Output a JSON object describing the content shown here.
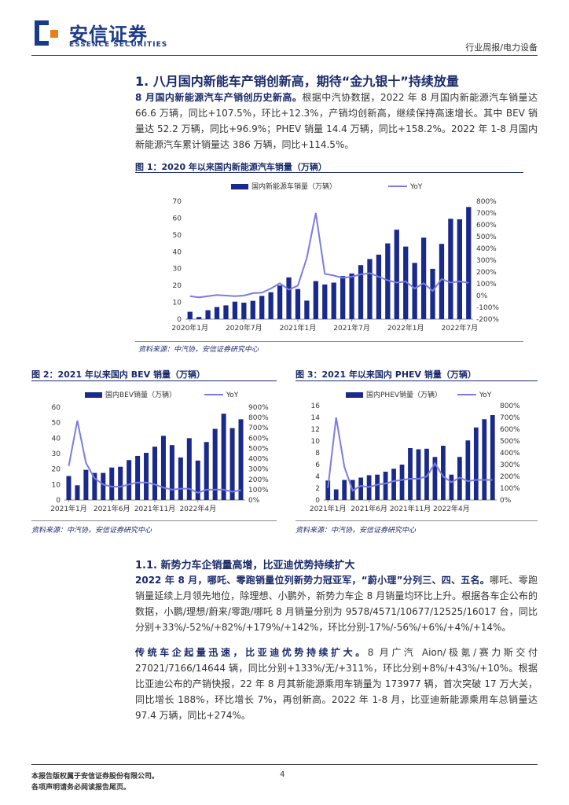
{
  "header": {
    "logo_cn": "安信证券",
    "logo_en": "ESSENCE SECURITIES",
    "report_type": "行业周报/电力设备"
  },
  "section1": {
    "title": "1. 八月国内新能车产销创新高，期待“金九银十”持续放量",
    "para_bold": "8 月国内新能源汽车产销创历史新高。",
    "para_text": "根据中汽协数据，2022 年 8 月国内新能源汽车销量达 66.6 万辆，同比+107.5%，环比+12.3%，产销均创新高，继续保持高速增长。其中 BEV 销量达 52.2 万辆，同比+96.9%；PHEV 销量 14.4 万辆，同比+158.2%。2022 年 1-8 月国内新能源汽车累计销量达 386 万辆，同比+114.5%。"
  },
  "fig1": {
    "title": "图 1：2020 年以来国内新能源汽车销量（万辆）",
    "source": "资料来源：中汽协，安信证券研究中心"
  },
  "fig2": {
    "title": "图 2：2021 年以来国内 BEV 销量（万辆）",
    "source": "资料来源：中汽协，安信证券研究中心"
  },
  "fig3": {
    "title": "图 3：2021 年以来国内 PHEV 销量（万辆）",
    "source": "资料来源：中汽协，安信证券研究中心"
  },
  "section11": {
    "title": "1.1. 新势力车企销量高增，比亚迪优势持续扩大",
    "p1_bold": "2022 年 8 月，哪吒、零跑销量位列新势力冠亚军，“蔚小理”分列三、四、五名。",
    "p1_text": "哪吒、零跑销量延续上月领先地位，除理想、小鹏外，新势力车企 8 月销量均环比上升。根据各车企公布的数据，小鹏/理想/蔚来/零跑/哪吒 8 月销量分别为 9578/4571/10677/12525/16017 台，同比分别+33%/-52%/+82%/+179%/+142%，环比分别-17%/-56%/+6%/+4%/+14%。",
    "p2_bold": "传统车企起量迅速，比亚迪优势持续扩大。",
    "p2_text": "8 月广汽 Aion/极氪/赛力斯交付 27021/7166/14644 辆，同比分别+133%/无/+311%，环比分别+8%/+43%/+10%。根据比亚迪公布的产销快报，22 年 8 月其新能源乘用车销量为 173977 辆，首次突破 17 万大关，同比增长 188%，环比增长 7%，再创新高。2022 年 1-8 月，比亚迪新能源乘用车总销量达 97.4 万辆，同比+274%。"
  },
  "footer": {
    "line1": "本报告版权属于安信证券股份有限公司。",
    "line2": "各项声明请务必阅读报告尾页。",
    "page": "4"
  },
  "chart_data": [
    {
      "type": "bar",
      "id": "fig1",
      "series": [
        {
          "name": "国内新能源车销量（万辆）",
          "kind": "bar",
          "axis": "left",
          "values": [
            4.4,
            1.3,
            5.3,
            7.2,
            8.2,
            10.4,
            9.8,
            10.9,
            13.8,
            16.0,
            20.0,
            24.8,
            17.9,
            11.0,
            22.6,
            20.6,
            21.7,
            25.6,
            27.1,
            32.1,
            35.7,
            38.3,
            45.0,
            53.1,
            43.1,
            33.4,
            48.4,
            29.9,
            44.7,
            59.6,
            59.3,
            66.6
          ]
        },
        {
          "name": "YoY",
          "kind": "line",
          "axis": "right",
          "values": [
            -5,
            -15,
            -5,
            5,
            0,
            -5,
            0,
            20,
            25,
            60,
            105,
            50,
            85,
            320,
            700,
            185,
            170,
            150,
            160,
            180,
            190,
            160,
            130,
            110,
            120,
            60,
            105,
            40,
            140,
            110,
            120,
            108
          ]
        }
      ],
      "tick_labels": [
        "2020年1月",
        "2020年7月",
        "2021年1月",
        "2021年7月",
        "2022年1月",
        "2022年7月"
      ],
      "ylim": [
        0,
        70
      ],
      "y_ticks": [
        0,
        10,
        20,
        30,
        40,
        50,
        60,
        70
      ],
      "y2lim": [
        -200,
        800
      ],
      "y2_tick_labels": [
        "800%",
        "700%",
        "600%",
        "500%",
        "400%",
        "300%",
        "200%",
        "100%",
        "0%",
        "-100%",
        "-200%"
      ],
      "legend": "top",
      "color_bar": "#1a2a8a",
      "color_line": "#7b7be6"
    },
    {
      "type": "bar",
      "id": "fig2",
      "series": [
        {
          "name": "国内BEV销量（万辆）",
          "kind": "bar",
          "axis": "left",
          "values": [
            15.5,
            9.5,
            19.5,
            17.5,
            17.5,
            21.0,
            21.5,
            25.8,
            28.5,
            30.5,
            34.5,
            41.5,
            35.5,
            27.5,
            40.0,
            25.5,
            37.5,
            46.0,
            55.8,
            46.5,
            52.2
          ]
        },
        {
          "name": "YoY",
          "kind": "line",
          "axis": "right",
          "values": [
            330,
            770,
            360,
            210,
            150,
            130,
            130,
            150,
            170,
            170,
            150,
            120,
            100,
            110,
            110,
            70,
            100,
            100,
            100,
            80,
            95
          ]
        }
      ],
      "tick_labels": [
        "2021年1月",
        "2021年6月",
        "2021年11月",
        "2022年4月"
      ],
      "ylim": [
        0,
        60
      ],
      "y_ticks": [
        0,
        10,
        20,
        30,
        40,
        50,
        60
      ],
      "y2lim": [
        0,
        900
      ],
      "y2_tick_labels": [
        "900%",
        "800%",
        "700%",
        "600%",
        "500%",
        "400%",
        "300%",
        "200%",
        "100%",
        "0%"
      ],
      "legend": "top",
      "color_bar": "#1a2a8a",
      "color_line": "#7b7be6"
    },
    {
      "type": "bar",
      "id": "fig3",
      "series": [
        {
          "name": "国内PHEV销量（万辆）",
          "kind": "bar",
          "axis": "left",
          "values": [
            3.3,
            1.8,
            3.4,
            3.4,
            3.8,
            4.2,
            4.3,
            4.8,
            5.3,
            6.0,
            8.8,
            8.6,
            8.7,
            7.3,
            9.2,
            4.3,
            7.3,
            10.1,
            12.3,
            13.7,
            14.4
          ]
        },
        {
          "name": "YoY",
          "kind": "line",
          "axis": "right",
          "values": [
            100,
            700,
            280,
            80,
            120,
            110,
            130,
            140,
            160,
            170,
            180,
            180,
            200,
            310,
            200,
            150,
            190,
            160,
            170,
            170,
            170
          ]
        }
      ],
      "tick_labels": [
        "2021年1月",
        "2021年6月",
        "2021年11月",
        "2022年4月"
      ],
      "ylim": [
        0,
        16
      ],
      "y_ticks": [
        0,
        2,
        4,
        6,
        8,
        10,
        12,
        14,
        16
      ],
      "y2lim": [
        0,
        800
      ],
      "y2_tick_labels": [
        "800%",
        "700%",
        "600%",
        "500%",
        "400%",
        "300%",
        "200%",
        "100%",
        "0%"
      ],
      "legend": "top",
      "color_bar": "#1a2a8a",
      "color_line": "#7b7be6"
    }
  ]
}
